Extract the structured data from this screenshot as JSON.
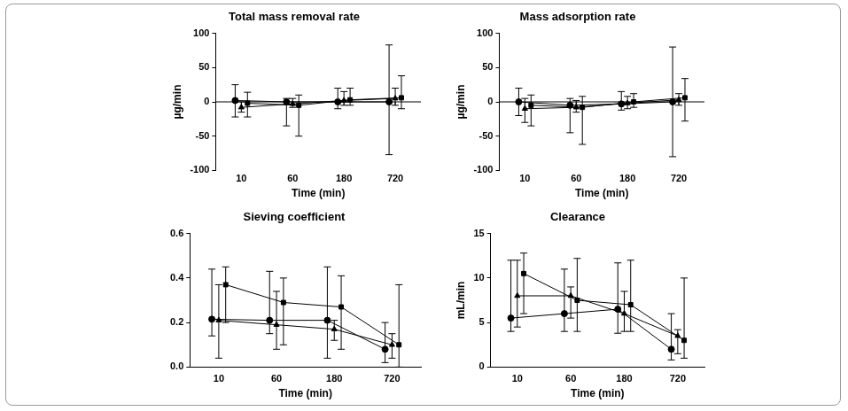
{
  "chart_data": [
    {
      "type": "line",
      "title": "Total mass removal rate",
      "x_label": "Time (min)",
      "y_label": "µg/min",
      "categories": [
        "10",
        "60",
        "180",
        "720"
      ],
      "ylim": [
        -100,
        100
      ],
      "yticks": [
        -100,
        -50,
        0,
        50,
        100
      ],
      "grid": false,
      "tick_labels": true,
      "series": [
        {
          "marker": "circle",
          "color": "#000000",
          "values": [
            2,
            0,
            0,
            0
          ],
          "lower": [
            -22,
            -35,
            -10,
            -77
          ],
          "upper": [
            25,
            5,
            20,
            83
          ]
        },
        {
          "marker": "triangle",
          "color": "#000000",
          "values": [
            -8,
            -3,
            2,
            5
          ],
          "lower": [
            -15,
            -8,
            -5,
            -5
          ],
          "upper": [
            0,
            5,
            15,
            20
          ]
        },
        {
          "marker": "square",
          "color": "#000000",
          "values": [
            -2,
            -5,
            3,
            6
          ],
          "lower": [
            -22,
            -50,
            -5,
            -10
          ],
          "upper": [
            14,
            10,
            20,
            38
          ]
        }
      ]
    },
    {
      "type": "line",
      "title": "Mass adsorption rate",
      "x_label": "Time (min)",
      "y_label": "µg/min",
      "categories": [
        "10",
        "60",
        "180",
        "720"
      ],
      "ylim": [
        -100,
        100
      ],
      "yticks": [
        -100,
        -50,
        0,
        50,
        100
      ],
      "grid": false,
      "tick_labels": true,
      "series": [
        {
          "marker": "circle",
          "color": "#000000",
          "values": [
            0,
            -5,
            -3,
            0
          ],
          "lower": [
            -20,
            -45,
            -12,
            -80
          ],
          "upper": [
            20,
            5,
            15,
            80
          ]
        },
        {
          "marker": "triangle",
          "color": "#000000",
          "values": [
            -10,
            -8,
            -2,
            3
          ],
          "lower": [
            -30,
            -15,
            -10,
            -5
          ],
          "upper": [
            5,
            2,
            8,
            12
          ]
        },
        {
          "marker": "square",
          "color": "#000000",
          "values": [
            -5,
            -8,
            0,
            6
          ],
          "lower": [
            -35,
            -62,
            -8,
            -28
          ],
          "upper": [
            10,
            8,
            12,
            34
          ]
        }
      ]
    },
    {
      "type": "line",
      "title": "Sieving coefficient",
      "x_label": "Time (min)",
      "categories": [
        "10",
        "60",
        "180",
        "720"
      ],
      "ylim": [
        0,
        0.6
      ],
      "yticks": [
        {
          "value": 0,
          "label": "0.0"
        },
        0.2,
        0.4,
        0.6
      ],
      "grid": false,
      "tick_labels": true,
      "series": [
        {
          "marker": "circle",
          "color": "#000000",
          "values": [
            0.215,
            0.21,
            0.21,
            0.08
          ],
          "lower": [
            0.14,
            0.15,
            0.04,
            0.02
          ],
          "upper": [
            0.44,
            0.43,
            0.45,
            0.2
          ]
        },
        {
          "marker": "triangle",
          "color": "#000000",
          "values": [
            0.21,
            0.19,
            0.17,
            0.1
          ],
          "lower": [
            0.04,
            0.08,
            0.12,
            0.04
          ],
          "upper": [
            0.37,
            0.34,
            0.21,
            0.15
          ]
        },
        {
          "marker": "square",
          "color": "#000000",
          "values": [
            0.37,
            0.29,
            0.27,
            0.1
          ],
          "lower": [
            0.2,
            0.1,
            0.08,
            0.0
          ],
          "upper": [
            0.45,
            0.4,
            0.41,
            0.37
          ]
        }
      ]
    },
    {
      "type": "line",
      "title": "Clearance",
      "x_label": "Time (min)",
      "y_label": "mL/min",
      "categories": [
        "10",
        "60",
        "180",
        "720"
      ],
      "ylim": [
        0,
        15
      ],
      "yticks": [
        0,
        5,
        10,
        15
      ],
      "grid": false,
      "tick_labels": true,
      "series": [
        {
          "marker": "circle",
          "color": "#000000",
          "values": [
            5.5,
            6,
            6.5,
            2
          ],
          "lower": [
            4,
            4,
            3.8,
            0.8
          ],
          "upper": [
            12,
            11,
            11.7,
            6
          ]
        },
        {
          "marker": "triangle",
          "color": "#000000",
          "values": [
            8,
            8,
            6,
            3.5
          ],
          "lower": [
            4.5,
            5.5,
            4,
            1.5
          ],
          "upper": [
            12,
            9,
            8.5,
            4.2
          ]
        },
        {
          "marker": "square",
          "color": "#000000",
          "values": [
            10.5,
            7.5,
            7,
            3
          ],
          "lower": [
            6,
            4,
            4,
            1
          ],
          "upper": [
            12.8,
            12.2,
            12,
            10
          ]
        }
      ]
    }
  ]
}
